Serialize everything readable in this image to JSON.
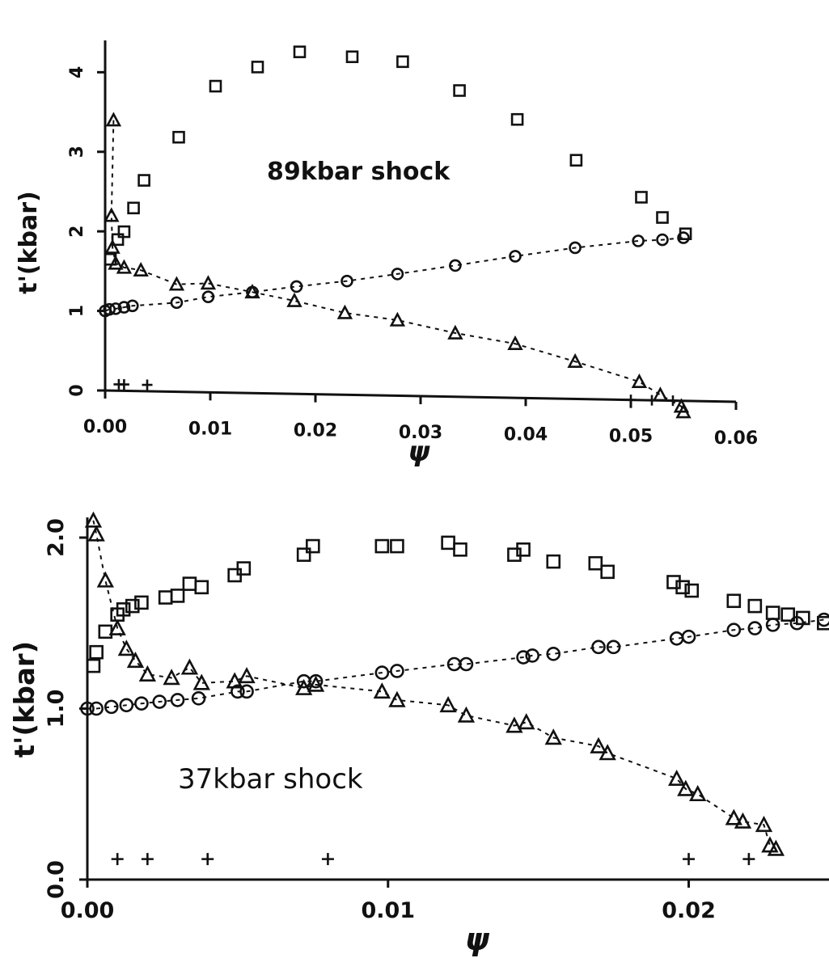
{
  "chart_data": [
    {
      "type": "scatter",
      "annotation": "89kbar shock",
      "xlabel": "ψ",
      "ylabel": "t'(kbar)",
      "xlim": [
        0.0,
        0.06
      ],
      "ylim": [
        0,
        4.4
      ],
      "x_ticks": [
        "0.00",
        "0.01",
        "0.02",
        "0.03",
        "0.04",
        "0.05",
        "0.06"
      ],
      "y_ticks": [
        "0",
        "1",
        "2",
        "3",
        "4"
      ],
      "grid": false,
      "series": [
        {
          "marker": "square",
          "points": [
            [
              0.0005,
              1.65
            ],
            [
              0.0012,
              1.9
            ],
            [
              0.0018,
              2.0
            ],
            [
              0.0027,
              2.3
            ],
            [
              0.0037,
              2.65
            ],
            [
              0.007,
              3.2
            ],
            [
              0.0105,
              3.85
            ],
            [
              0.0145,
              4.1
            ],
            [
              0.0185,
              4.3
            ],
            [
              0.0235,
              4.25
            ],
            [
              0.0283,
              4.2
            ],
            [
              0.0337,
              3.85
            ],
            [
              0.0392,
              3.5
            ],
            [
              0.0448,
              3.0
            ],
            [
              0.051,
              2.55
            ],
            [
              0.053,
              2.3
            ],
            [
              0.0552,
              2.1
            ]
          ]
        },
        {
          "marker": "circle",
          "connected": true,
          "points": [
            [
              0.0,
              1.0
            ],
            [
              0.0004,
              1.02
            ],
            [
              0.001,
              1.03
            ],
            [
              0.0018,
              1.05
            ],
            [
              0.0026,
              1.07
            ],
            [
              0.0068,
              1.12
            ],
            [
              0.0098,
              1.2
            ],
            [
              0.014,
              1.27
            ],
            [
              0.0182,
              1.35
            ],
            [
              0.023,
              1.43
            ],
            [
              0.0278,
              1.53
            ],
            [
              0.0333,
              1.65
            ],
            [
              0.039,
              1.78
            ],
            [
              0.0447,
              1.9
            ],
            [
              0.0507,
              2.0
            ],
            [
              0.053,
              2.02
            ],
            [
              0.055,
              2.05
            ]
          ]
        },
        {
          "marker": "triangle",
          "connected": true,
          "points": [
            [
              0.0008,
              3.4
            ],
            [
              0.0006,
              2.2
            ],
            [
              0.0007,
              1.8
            ],
            [
              0.001,
              1.6
            ],
            [
              0.0018,
              1.55
            ],
            [
              0.0034,
              1.52
            ],
            [
              0.0068,
              1.35
            ],
            [
              0.0098,
              1.37
            ],
            [
              0.014,
              1.27
            ],
            [
              0.018,
              1.17
            ],
            [
              0.0228,
              1.03
            ],
            [
              0.0278,
              0.95
            ],
            [
              0.0333,
              0.8
            ],
            [
              0.039,
              0.68
            ],
            [
              0.0447,
              0.47
            ],
            [
              0.0508,
              0.23
            ],
            [
              0.0528,
              0.07
            ],
            [
              0.0548,
              -0.07
            ],
            [
              0.055,
              -0.14
            ]
          ]
        },
        {
          "marker": "plus",
          "points": [
            [
              0.0013,
              0.08
            ],
            [
              0.0018,
              0.08
            ],
            [
              0.004,
              0.08
            ],
            [
              0.05,
              0.0
            ],
            [
              0.052,
              0.0
            ],
            [
              0.054,
              0.0
            ]
          ]
        }
      ]
    },
    {
      "type": "scatter",
      "annotation": "37kbar shock",
      "xlabel": "ψ",
      "ylabel": "t'(kbar)",
      "xlim": [
        0.0,
        0.0248
      ],
      "ylim": [
        0.0,
        2.0
      ],
      "x_ticks": [
        "0.00",
        "0.01",
        "0.02"
      ],
      "y_ticks": [
        "0.0",
        "1.0",
        "2.0"
      ],
      "grid": false,
      "series": [
        {
          "marker": "square",
          "points": [
            [
              0.0002,
              1.25
            ],
            [
              0.0003,
              1.33
            ],
            [
              0.0006,
              1.45
            ],
            [
              0.001,
              1.55
            ],
            [
              0.0012,
              1.58
            ],
            [
              0.0015,
              1.6
            ],
            [
              0.0018,
              1.62
            ],
            [
              0.0026,
              1.65
            ],
            [
              0.003,
              1.66
            ],
            [
              0.0034,
              1.73
            ],
            [
              0.0038,
              1.71
            ],
            [
              0.0049,
              1.78
            ],
            [
              0.0052,
              1.82
            ],
            [
              0.0072,
              1.9
            ],
            [
              0.0075,
              1.95
            ],
            [
              0.0098,
              1.95
            ],
            [
              0.0103,
              1.95
            ],
            [
              0.012,
              1.97
            ],
            [
              0.0124,
              1.93
            ],
            [
              0.0142,
              1.9
            ],
            [
              0.0145,
              1.93
            ],
            [
              0.0155,
              1.86
            ],
            [
              0.0169,
              1.85
            ],
            [
              0.0173,
              1.8
            ],
            [
              0.0195,
              1.74
            ],
            [
              0.0198,
              1.71
            ],
            [
              0.0201,
              1.69
            ],
            [
              0.0215,
              1.63
            ],
            [
              0.0222,
              1.6
            ],
            [
              0.0228,
              1.56
            ],
            [
              0.0233,
              1.55
            ],
            [
              0.0238,
              1.53
            ],
            [
              0.0245,
              1.5
            ]
          ]
        },
        {
          "marker": "circle",
          "connected": true,
          "points": [
            [
              0.0,
              1.0
            ],
            [
              0.0003,
              1.0
            ],
            [
              0.0008,
              1.01
            ],
            [
              0.0013,
              1.02
            ],
            [
              0.0018,
              1.03
            ],
            [
              0.0024,
              1.04
            ],
            [
              0.003,
              1.05
            ],
            [
              0.0037,
              1.06
            ],
            [
              0.005,
              1.1
            ],
            [
              0.0053,
              1.1
            ],
            [
              0.0072,
              1.16
            ],
            [
              0.0076,
              1.16
            ],
            [
              0.0098,
              1.21
            ],
            [
              0.0103,
              1.22
            ],
            [
              0.0122,
              1.26
            ],
            [
              0.0126,
              1.26
            ],
            [
              0.0145,
              1.3
            ],
            [
              0.0148,
              1.31
            ],
            [
              0.0155,
              1.32
            ],
            [
              0.017,
              1.36
            ],
            [
              0.0175,
              1.36
            ],
            [
              0.0196,
              1.41
            ],
            [
              0.02,
              1.42
            ],
            [
              0.0215,
              1.46
            ],
            [
              0.0222,
              1.47
            ],
            [
              0.0228,
              1.49
            ],
            [
              0.0236,
              1.5
            ],
            [
              0.0245,
              1.52
            ]
          ]
        },
        {
          "marker": "triangle",
          "connected": true,
          "points": [
            [
              0.0002,
              2.1
            ],
            [
              0.0003,
              2.02
            ],
            [
              0.0006,
              1.75
            ],
            [
              0.001,
              1.47
            ],
            [
              0.0013,
              1.35
            ],
            [
              0.0016,
              1.28
            ],
            [
              0.002,
              1.2
            ],
            [
              0.0028,
              1.18
            ],
            [
              0.0034,
              1.24
            ],
            [
              0.0038,
              1.15
            ],
            [
              0.0049,
              1.16
            ],
            [
              0.0053,
              1.19
            ],
            [
              0.0072,
              1.12
            ],
            [
              0.0076,
              1.14
            ],
            [
              0.0098,
              1.1
            ],
            [
              0.0103,
              1.05
            ],
            [
              0.012,
              1.02
            ],
            [
              0.0126,
              0.96
            ],
            [
              0.0142,
              0.9
            ],
            [
              0.0146,
              0.92
            ],
            [
              0.0155,
              0.83
            ],
            [
              0.017,
              0.78
            ],
            [
              0.0173,
              0.74
            ],
            [
              0.0196,
              0.59
            ],
            [
              0.0199,
              0.53
            ],
            [
              0.0203,
              0.5
            ],
            [
              0.0215,
              0.36
            ],
            [
              0.0218,
              0.34
            ],
            [
              0.0225,
              0.32
            ],
            [
              0.0227,
              0.2
            ],
            [
              0.0229,
              0.18
            ]
          ]
        },
        {
          "marker": "plus",
          "points": [
            [
              0.001,
              0.12
            ],
            [
              0.002,
              0.12
            ],
            [
              0.004,
              0.12
            ],
            [
              0.008,
              0.12
            ],
            [
              0.02,
              0.12
            ],
            [
              0.022,
              0.12
            ]
          ]
        }
      ]
    }
  ]
}
